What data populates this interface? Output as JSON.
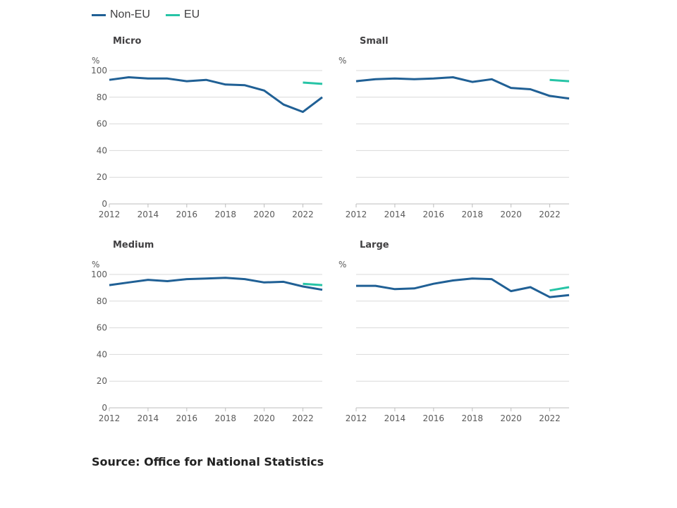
{
  "colors": {
    "non_eu": "#206095",
    "eu": "#27c4a6",
    "grid": "#d9d9d9",
    "axis_text": "#5a5a5a",
    "title_text": "#414042"
  },
  "legend": [
    {
      "label": "Non-EU",
      "color": "#206095"
    },
    {
      "label": "EU",
      "color": "#27c4a6"
    }
  ],
  "source": "Source: Office for National Statistics",
  "chart_data": [
    {
      "type": "line",
      "title": "Micro",
      "ylabel": "%",
      "ylim": [
        0,
        100
      ],
      "yticks": [
        0,
        20,
        40,
        60,
        80,
        100
      ],
      "show_y_tick_labels": true,
      "xlim": [
        2012,
        2023
      ],
      "xticks": [
        2012,
        2014,
        2016,
        2018,
        2020,
        2022
      ],
      "grid": true,
      "series": [
        {
          "name": "Non-EU",
          "x": [
            2012,
            2013,
            2014,
            2015,
            2016,
            2017,
            2018,
            2019,
            2020,
            2021,
            2022,
            2023
          ],
          "values": [
            93,
            95,
            94,
            94,
            92,
            93,
            89.5,
            89,
            85,
            74.5,
            69,
            80
          ]
        },
        {
          "name": "EU",
          "x": [
            2022,
            2023
          ],
          "values": [
            91,
            90
          ]
        }
      ]
    },
    {
      "type": "line",
      "title": "Small",
      "ylabel": "%",
      "ylim": [
        0,
        100
      ],
      "yticks": [
        0,
        20,
        40,
        60,
        80,
        100
      ],
      "show_y_tick_labels": false,
      "xlim": [
        2012,
        2023
      ],
      "xticks": [
        2012,
        2014,
        2016,
        2018,
        2020,
        2022
      ],
      "grid": true,
      "series": [
        {
          "name": "Non-EU",
          "x": [
            2012,
            2013,
            2014,
            2015,
            2016,
            2017,
            2018,
            2019,
            2020,
            2021,
            2022,
            2023
          ],
          "values": [
            92,
            93.5,
            94,
            93.5,
            94,
            95,
            91.5,
            93.5,
            87,
            86,
            81,
            79
          ]
        },
        {
          "name": "EU",
          "x": [
            2022,
            2023
          ],
          "values": [
            93,
            92
          ]
        }
      ]
    },
    {
      "type": "line",
      "title": "Medium",
      "ylabel": "%",
      "ylim": [
        0,
        100
      ],
      "yticks": [
        0,
        20,
        40,
        60,
        80,
        100
      ],
      "show_y_tick_labels": true,
      "xlim": [
        2012,
        2023
      ],
      "xticks": [
        2012,
        2014,
        2016,
        2018,
        2020,
        2022
      ],
      "grid": true,
      "series": [
        {
          "name": "Non-EU",
          "x": [
            2012,
            2013,
            2014,
            2015,
            2016,
            2017,
            2018,
            2019,
            2020,
            2021,
            2022,
            2023
          ],
          "values": [
            92,
            94,
            96,
            95,
            96.5,
            97,
            97.5,
            96.5,
            94,
            94.5,
            91,
            88.5
          ]
        },
        {
          "name": "EU",
          "x": [
            2022,
            2023
          ],
          "values": [
            93,
            92
          ]
        }
      ]
    },
    {
      "type": "line",
      "title": "Large",
      "ylabel": "%",
      "ylim": [
        0,
        100
      ],
      "yticks": [
        0,
        20,
        40,
        60,
        80,
        100
      ],
      "show_y_tick_labels": false,
      "xlim": [
        2012,
        2023
      ],
      "xticks": [
        2012,
        2014,
        2016,
        2018,
        2020,
        2022
      ],
      "grid": true,
      "series": [
        {
          "name": "Non-EU",
          "x": [
            2012,
            2013,
            2014,
            2015,
            2016,
            2017,
            2018,
            2019,
            2020,
            2021,
            2022,
            2023
          ],
          "values": [
            91.5,
            91.5,
            89,
            89.5,
            93,
            95.5,
            97,
            96.5,
            87.5,
            90.5,
            83,
            84.5
          ]
        },
        {
          "name": "EU",
          "x": [
            2022,
            2023
          ],
          "values": [
            88,
            90.5
          ]
        }
      ]
    }
  ]
}
